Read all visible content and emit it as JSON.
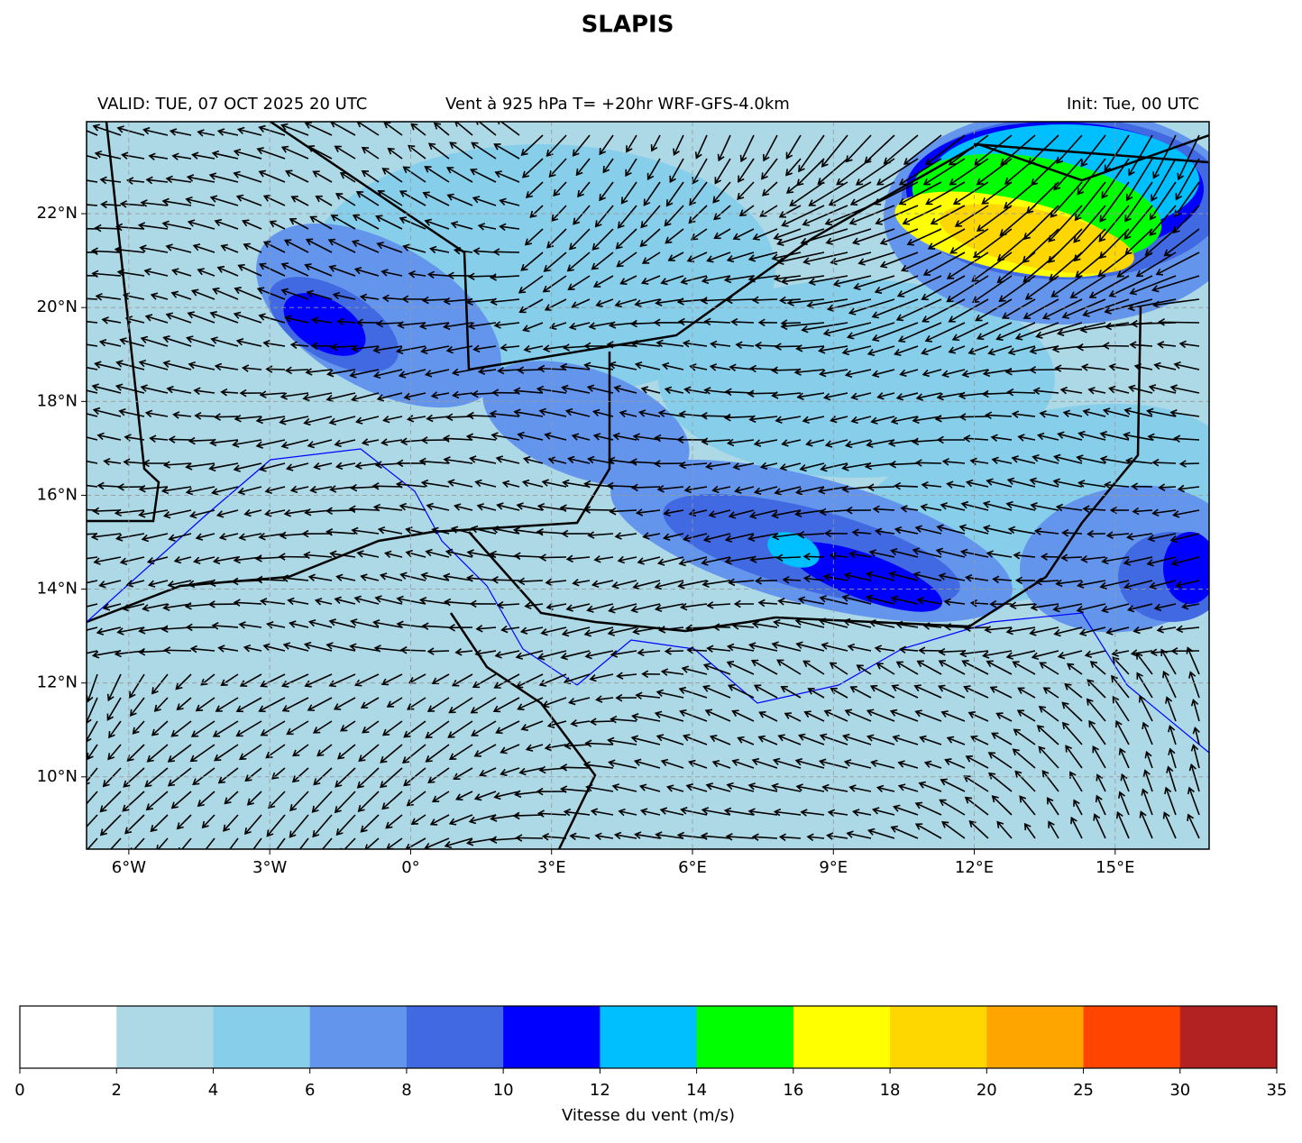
{
  "map": {
    "title": "SLAPIS",
    "valid": "VALID: TUE, 07 OCT 2025 20 UTC",
    "subtitle": "Vent à 925 hPa T= +20hr  WRF-GFS-4.0km",
    "init": "Init: Tue, 00 UTC",
    "xlim": [
      -6.9,
      17.0
    ],
    "ylim": [
      8.46,
      23.96
    ],
    "xticks": [
      {
        "value": -6,
        "label": "6°W"
      },
      {
        "value": -3,
        "label": "3°W"
      },
      {
        "value": 0,
        "label": "0°"
      },
      {
        "value": 3,
        "label": "3°E"
      },
      {
        "value": 6,
        "label": "6°E"
      },
      {
        "value": 9,
        "label": "9°E"
      },
      {
        "value": 12,
        "label": "12°E"
      },
      {
        "value": 15,
        "label": "15°E"
      }
    ],
    "yticks": [
      {
        "value": 10,
        "label": "10°N"
      },
      {
        "value": 12,
        "label": "12°N"
      },
      {
        "value": 14,
        "label": "14°N"
      },
      {
        "value": 16,
        "label": "16°N"
      },
      {
        "value": 18,
        "label": "18°N"
      },
      {
        "value": 20,
        "label": "20°N"
      },
      {
        "value": 22,
        "label": "22°N"
      }
    ]
  },
  "colorbar": {
    "bounds": [
      0,
      2,
      4,
      6,
      8,
      10,
      12,
      14,
      16,
      18,
      20,
      25,
      30,
      35
    ],
    "colors": [
      "#ffffff",
      "#add8e6",
      "#87ceeb",
      "#6495ed",
      "#4169e1",
      "#0000ff",
      "#00bfff",
      "#00ff00",
      "#ffff00",
      "#ffd700",
      "#ffa500",
      "#ff4500",
      "#b22222"
    ],
    "label": "Vitesse du vent (m/s)"
  }
}
